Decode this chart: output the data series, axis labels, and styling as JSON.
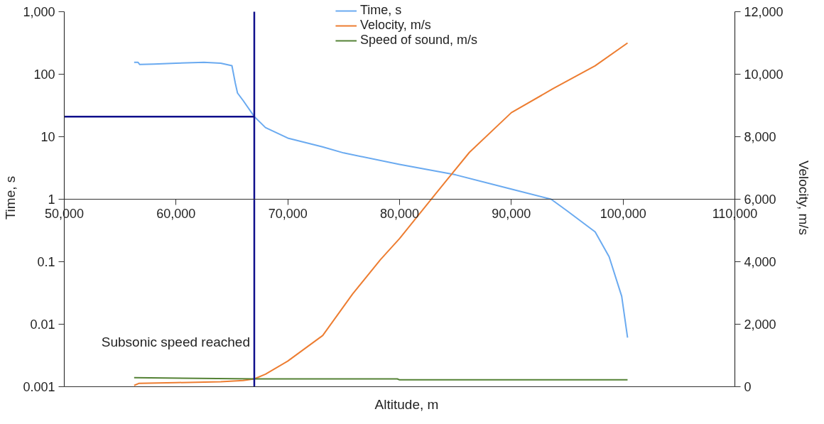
{
  "chart_data": {
    "type": "line",
    "xlabel": "Altitude, m",
    "ylabel": "Time, s",
    "y2label": "Velocity, m/s",
    "xlim": [
      50000,
      110000
    ],
    "xticks": [
      {
        "value": 50000,
        "label": "50,000"
      },
      {
        "value": 60000,
        "label": "60,000"
      },
      {
        "value": 70000,
        "label": "70,000"
      },
      {
        "value": 80000,
        "label": "80,000"
      },
      {
        "value": 90000,
        "label": "90,000"
      },
      {
        "value": 100000,
        "label": "100,000"
      },
      {
        "value": 110000,
        "label": "110,000"
      }
    ],
    "ylim": [
      0.001,
      1000
    ],
    "yticks": [
      0.001,
      0.01,
      0.1,
      1,
      10,
      100,
      {
        "value": 1000,
        "label": "1,000"
      }
    ],
    "y2lim": [
      0,
      12000
    ],
    "y2ticks": [
      0,
      {
        "value": 2000,
        "label": "2,000"
      },
      {
        "value": 4000,
        "label": "4,000"
      },
      {
        "value": 6000,
        "label": "6,000"
      },
      {
        "value": 8000,
        "label": "8,000"
      },
      {
        "value": 10000,
        "label": "10,000"
      },
      {
        "value": 12000,
        "label": "12,000"
      }
    ],
    "log": "y",
    "grid": false,
    "legend": "top",
    "marker": "none",
    "line_style": "solid",
    "series": [
      {
        "name": "Time, s",
        "color": "#6aaaf0",
        "x": [
          56250,
          56600,
          56750,
          58000,
          60000,
          62500,
          64000,
          65000,
          65300,
          65500,
          66000,
          67000,
          68000,
          70000,
          73100,
          75000,
          80000,
          85000,
          90000,
          93560,
          95000,
          97500,
          98750,
          99875,
          100400
        ],
        "values": [
          155,
          155,
          143,
          145,
          150,
          155,
          150,
          137,
          72,
          50,
          38,
          21,
          14,
          9.5,
          6.9,
          5.5,
          3.6,
          2.46,
          1.45,
          1.0,
          0.65,
          0.3,
          0.12,
          0.028,
          0.0061
        ]
      },
      {
        "name": "Velocity, m/s",
        "color": "#ed7d31",
        "axis": "y2",
        "x": [
          56250,
          56700,
          60000,
          64000,
          66000,
          67000,
          68000,
          70000,
          73125,
          75800,
          78300,
          80000,
          83125,
          86250,
          90000,
          93750,
          97500,
          100400
        ],
        "values": [
          40,
          110,
          130,
          160,
          200,
          250,
          400,
          820,
          1640,
          2970,
          4070,
          4740,
          6130,
          7500,
          8770,
          9540,
          10270,
          11000
        ]
      },
      {
        "name": "Speed of sound, m/s",
        "color": "#548235",
        "axis": "y2",
        "x": [
          56250,
          67000,
          79800,
          80000,
          100400
        ],
        "values": [
          290,
          250,
          250,
          220,
          220
        ]
      },
      {
        "color": "#10108c",
        "x": [
          50000,
          67000
        ],
        "values": [
          21,
          21
        ]
      },
      {
        "color": "#10108c",
        "x": [
          67000,
          67000
        ],
        "values": [
          0.001,
          1000
        ]
      }
    ],
    "annotations": [
      {
        "text": "Subsonic speed reached",
        "x": 67000,
        "y": 0.004
      }
    ]
  }
}
